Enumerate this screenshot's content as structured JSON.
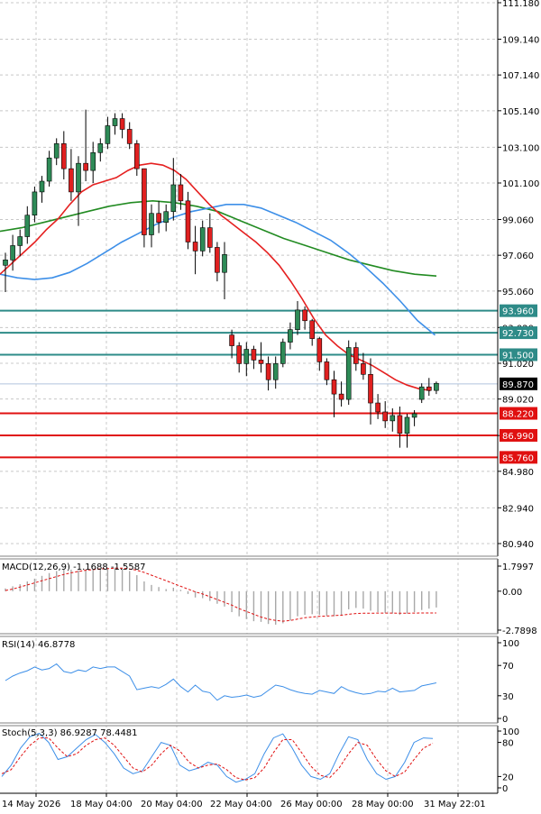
{
  "chart_data": {
    "type": "candlestick",
    "price_axis": {
      "ticks": [
        "111.180",
        "109.140",
        "107.140",
        "105.140",
        "103.100",
        "101.100",
        "99.060",
        "97.060",
        "95.060",
        "93.020",
        "91.020",
        "89.020",
        "86.980",
        "84.980",
        "82.940",
        "80.940"
      ],
      "tick_values": [
        111.18,
        109.14,
        107.14,
        105.14,
        103.1,
        101.1,
        99.06,
        97.06,
        95.06,
        93.02,
        91.02,
        89.02,
        86.98,
        84.98,
        82.94,
        80.94
      ],
      "range": [
        79.5,
        111.5
      ]
    },
    "time_axis": [
      "14 May 2026",
      "18 May 04:00",
      "20 May 04:00",
      "22 May 04:00",
      "26 May 00:00",
      "28 May 00:00",
      "31 May 22:01"
    ],
    "current_price": "89.870",
    "levels": [
      {
        "label": "93.960",
        "value": 93.96,
        "kind": "resistance",
        "color": "#2e8b88"
      },
      {
        "label": "92.730",
        "value": 92.73,
        "kind": "resistance",
        "color": "#2e8b88"
      },
      {
        "label": "91.500",
        "value": 91.5,
        "kind": "resistance",
        "color": "#2e8b88"
      },
      {
        "label": "88.220",
        "value": 88.22,
        "kind": "support",
        "color": "#e01010"
      },
      {
        "label": "86.990",
        "value": 86.99,
        "kind": "support",
        "color": "#e01010"
      },
      {
        "label": "85.760",
        "value": 85.76,
        "kind": "support",
        "color": "#e01010"
      }
    ],
    "candles": [
      [
        96.5,
        97.2,
        95.0,
        96.8
      ],
      [
        96.8,
        98.2,
        96.2,
        97.6
      ],
      [
        97.6,
        98.5,
        97.0,
        98.1
      ],
      [
        98.1,
        99.8,
        97.7,
        99.3
      ],
      [
        99.3,
        100.9,
        98.9,
        100.6
      ],
      [
        100.6,
        101.5,
        100.0,
        101.2
      ],
      [
        101.2,
        102.9,
        100.9,
        102.5
      ],
      [
        102.5,
        103.6,
        102.1,
        103.3
      ],
      [
        103.3,
        104.0,
        101.3,
        101.9
      ],
      [
        101.9,
        103.0,
        100.1,
        100.6
      ],
      [
        100.6,
        102.6,
        98.7,
        102.2
      ],
      [
        102.2,
        105.2,
        101.2,
        101.8
      ],
      [
        101.8,
        103.4,
        101.1,
        102.8
      ],
      [
        102.8,
        103.6,
        102.3,
        103.3
      ],
      [
        103.3,
        104.8,
        103.0,
        104.3
      ],
      [
        104.3,
        105.0,
        103.8,
        104.7
      ],
      [
        104.7,
        105.0,
        103.6,
        104.1
      ],
      [
        104.1,
        104.5,
        103.0,
        103.3
      ],
      [
        103.3,
        103.5,
        101.5,
        101.9
      ],
      [
        101.9,
        101.9,
        97.5,
        98.2
      ],
      [
        98.2,
        99.9,
        97.5,
        99.4
      ],
      [
        99.4,
        100.1,
        98.3,
        98.9
      ],
      [
        98.9,
        99.9,
        98.4,
        99.5
      ],
      [
        99.5,
        102.5,
        99.0,
        101.0
      ],
      [
        101.0,
        101.6,
        99.6,
        100.1
      ],
      [
        100.1,
        100.6,
        97.4,
        97.8
      ],
      [
        97.8,
        98.7,
        96.0,
        97.3
      ],
      [
        97.3,
        99.0,
        97.0,
        98.6
      ],
      [
        98.6,
        99.4,
        97.2,
        97.5
      ],
      [
        97.5,
        97.8,
        95.6,
        96.1
      ],
      [
        96.1,
        97.8,
        94.6,
        97.1
      ],
      [
        92.6,
        92.9,
        91.3,
        92.0
      ],
      [
        92.0,
        92.2,
        90.5,
        91.0
      ],
      [
        91.0,
        92.2,
        90.3,
        91.8
      ],
      [
        91.8,
        92.0,
        90.7,
        91.2
      ],
      [
        91.2,
        92.2,
        90.5,
        91.0
      ],
      [
        91.0,
        91.4,
        89.5,
        90.1
      ],
      [
        90.1,
        91.4,
        89.6,
        91.0
      ],
      [
        91.0,
        92.4,
        90.8,
        92.2
      ],
      [
        92.2,
        93.3,
        91.8,
        92.9
      ],
      [
        92.9,
        94.5,
        92.6,
        94.0
      ],
      [
        94.0,
        94.2,
        92.9,
        93.4
      ],
      [
        93.4,
        93.5,
        92.0,
        92.4
      ],
      [
        92.4,
        92.5,
        90.6,
        91.1
      ],
      [
        91.1,
        91.3,
        89.8,
        90.1
      ],
      [
        90.1,
        90.6,
        88.0,
        89.3
      ],
      [
        89.3,
        90.0,
        88.6,
        89.0
      ],
      [
        89.0,
        92.3,
        88.7,
        91.9
      ],
      [
        91.9,
        92.2,
        90.6,
        91.0
      ],
      [
        91.0,
        91.6,
        90.1,
        90.4
      ],
      [
        90.4,
        91.3,
        87.6,
        88.8
      ],
      [
        88.8,
        89.3,
        87.9,
        88.3
      ],
      [
        88.3,
        88.9,
        87.4,
        87.8
      ],
      [
        87.8,
        88.5,
        87.2,
        88.1
      ],
      [
        88.1,
        88.6,
        86.3,
        87.1
      ],
      [
        87.1,
        88.2,
        86.3,
        88.0
      ],
      [
        88.0,
        88.4,
        87.5,
        88.2
      ],
      [
        89.0,
        89.9,
        88.8,
        89.7
      ],
      [
        89.7,
        90.2,
        89.2,
        89.5
      ],
      [
        89.5,
        90.0,
        89.3,
        89.9
      ]
    ],
    "ma_fast_color": "#e52020",
    "ma_slow_color": "#228b22",
    "ma_mid_color": "#3d8fe8",
    "ma_fast": [
      96.0,
      96.6,
      97.2,
      97.8,
      98.5,
      99.1,
      99.9,
      100.6,
      101.0,
      101.2,
      101.4,
      101.8,
      102.1,
      102.2,
      102.1,
      101.8,
      101.3,
      100.6,
      99.9,
      99.3,
      98.8,
      98.3,
      97.8,
      97.2,
      96.5,
      95.6,
      94.6,
      93.5,
      92.6,
      92.0,
      91.5,
      91.2,
      90.9,
      90.5,
      90.1,
      89.8,
      89.6,
      89.5
    ],
    "ma_mid": [
      96.0,
      95.8,
      95.7,
      95.8,
      96.1,
      96.6,
      97.2,
      97.8,
      98.3,
      98.8,
      99.2,
      99.5,
      99.7,
      99.9,
      99.9,
      99.7,
      99.3,
      98.9,
      98.4,
      97.9,
      97.2,
      96.4,
      95.5,
      94.5,
      93.4,
      92.6
    ],
    "ma_slow": [
      98.4,
      98.6,
      98.9,
      99.2,
      99.5,
      99.8,
      100.0,
      100.1,
      100.0,
      99.8,
      99.5,
      99.0,
      98.5,
      98.0,
      97.6,
      97.2,
      96.8,
      96.5,
      96.2,
      96.0,
      95.9
    ],
    "macd": {
      "label": "MACD(12,26,9) -1.1688 -1.5587",
      "ticks": [
        "1.7997",
        "0.00",
        "-2.7898"
      ],
      "tick_values": [
        1.7997,
        0,
        -2.7898
      ],
      "hist": [
        0.2,
        0.35,
        0.5,
        0.7,
        0.9,
        1.1,
        1.3,
        1.45,
        1.55,
        1.55,
        1.5,
        1.5,
        1.55,
        1.6,
        1.65,
        1.7,
        1.6,
        1.45,
        1.15,
        0.7,
        0.45,
        0.3,
        0.15,
        0.25,
        0.1,
        -0.2,
        -0.45,
        -0.5,
        -0.7,
        -0.9,
        -1.1,
        -1.5,
        -1.8,
        -2.0,
        -2.15,
        -2.2,
        -2.35,
        -2.4,
        -2.3,
        -2.1,
        -1.8,
        -1.7,
        -1.65,
        -1.7,
        -1.75,
        -1.8,
        -1.7,
        -1.3,
        -1.2,
        -1.25,
        -1.4,
        -1.5,
        -1.55,
        -1.6,
        -1.7,
        -1.6,
        -1.5,
        -1.35,
        -1.25,
        -1.17
      ],
      "signal": [
        0.05,
        0.15,
        0.3,
        0.45,
        0.6,
        0.75,
        0.9,
        1.05,
        1.2,
        1.32,
        1.42,
        1.5,
        1.55,
        1.6,
        1.62,
        1.65,
        1.65,
        1.6,
        1.5,
        1.35,
        1.15,
        0.95,
        0.75,
        0.55,
        0.35,
        0.15,
        -0.05,
        -0.2,
        -0.4,
        -0.6,
        -0.8,
        -1.0,
        -1.25,
        -1.45,
        -1.65,
        -1.85,
        -2.0,
        -2.1,
        -2.15,
        -2.1,
        -2.0,
        -1.9,
        -1.85,
        -1.8,
        -1.78,
        -1.75,
        -1.72,
        -1.65,
        -1.6,
        -1.58,
        -1.58,
        -1.57,
        -1.57,
        -1.57,
        -1.58,
        -1.58,
        -1.57,
        -1.56,
        -1.56,
        -1.56
      ],
      "signal_color": "#e01010",
      "hist_color": "#a8a8a8"
    },
    "rsi": {
      "label": "RSI(14) 46.8778",
      "ticks": [
        "100",
        "70",
        "30",
        "0"
      ],
      "tick_values": [
        100,
        70,
        30,
        0
      ],
      "values": [
        50,
        56,
        60,
        63,
        68,
        64,
        66,
        72,
        62,
        60,
        64,
        62,
        68,
        66,
        68,
        68,
        62,
        56,
        38,
        40,
        42,
        40,
        45,
        52,
        42,
        35,
        44,
        36,
        34,
        24,
        30,
        28,
        29,
        31,
        28,
        30,
        37,
        44,
        42,
        38,
        35,
        33,
        32,
        37,
        35,
        33,
        42,
        37,
        34,
        32,
        33,
        36,
        35,
        40,
        35,
        36,
        37,
        43,
        45,
        47
      ],
      "color": "#3d8fe8"
    },
    "stoch": {
      "label": "Stoch(5,3,3) 86.9287 78.4481",
      "ticks": [
        "100",
        "80",
        "20",
        "0"
      ],
      "tick_values": [
        100,
        80,
        20,
        0
      ],
      "k": [
        20,
        40,
        70,
        90,
        96,
        80,
        50,
        55,
        70,
        85,
        94,
        80,
        60,
        35,
        25,
        30,
        55,
        80,
        75,
        40,
        30,
        35,
        45,
        40,
        20,
        10,
        15,
        25,
        60,
        88,
        95,
        70,
        40,
        20,
        15,
        25,
        60,
        90,
        85,
        50,
        25,
        15,
        20,
        45,
        80,
        88,
        86.93
      ],
      "d": [
        25,
        32,
        55,
        75,
        88,
        88,
        70,
        55,
        60,
        75,
        85,
        88,
        75,
        55,
        35,
        28,
        40,
        60,
        75,
        65,
        45,
        35,
        40,
        42,
        32,
        18,
        14,
        18,
        35,
        62,
        85,
        85,
        62,
        38,
        22,
        18,
        35,
        60,
        80,
        75,
        50,
        30,
        20,
        28,
        50,
        70,
        78.45
      ],
      "k_color": "#3d8fe8",
      "d_color": "#e01010"
    }
  }
}
